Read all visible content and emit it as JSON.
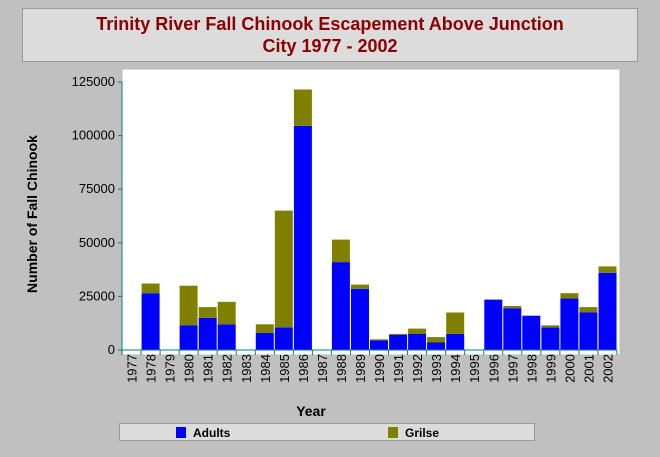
{
  "title": {
    "line1": "Trinity River Fall Chinook Escapement Above Junction",
    "line2": "City 1977 - 2002"
  },
  "chart_data": {
    "type": "bar",
    "stacked": true,
    "categories": [
      "1977",
      "1978",
      "1979",
      "1980",
      "1981",
      "1982",
      "1983",
      "1984",
      "1985",
      "1986",
      "1987",
      "1988",
      "1989",
      "1990",
      "1991",
      "1992",
      "1993",
      "1994",
      "1995",
      "1996",
      "1997",
      "1998",
      "1999",
      "2000",
      "2001",
      "2002"
    ],
    "series": [
      {
        "name": "Adults",
        "color": "#0000ff",
        "values": [
          0,
          26500,
          0,
          11500,
          15000,
          12000,
          0,
          8000,
          10500,
          104500,
          0,
          41000,
          28500,
          4500,
          7000,
          7500,
          3500,
          7500,
          0,
          23500,
          19500,
          16000,
          10500,
          24000,
          17500,
          36000
        ]
      },
      {
        "name": "Grilse",
        "color": "#808000",
        "values": [
          0,
          4500,
          0,
          18500,
          5000,
          10500,
          0,
          4000,
          54500,
          17000,
          0,
          10500,
          2000,
          500,
          500,
          2500,
          2500,
          10000,
          0,
          0,
          1000,
          0,
          1000,
          2500,
          2500,
          3000
        ]
      }
    ],
    "xlabel": "Year",
    "ylabel": "Number of Fall Chinook",
    "ylim": [
      0,
      125000
    ],
    "yticks": [
      "0",
      "25000",
      "50000",
      "75000",
      "100000",
      "125000"
    ],
    "grid": false,
    "legend_position": "bottom"
  }
}
